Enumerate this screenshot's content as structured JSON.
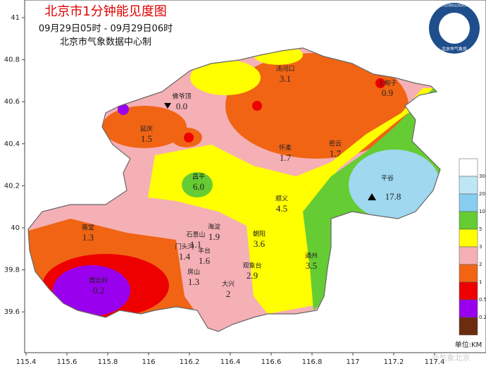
{
  "header": {
    "title": "北京市1分钟能见度图",
    "time_range": "09月29日05时 - 09月29日06时",
    "producer": "北京市气象数据中心制"
  },
  "axes": {
    "xticks": [
      115.4,
      115.6,
      115.8,
      116,
      116.2,
      116.4,
      116.6,
      116.8,
      117,
      117.2,
      117.4
    ],
    "yticks": [
      41,
      40.8,
      40.6,
      40.4,
      40.2,
      40,
      39.8,
      39.6
    ]
  },
  "stations": [
    {
      "name": "汤河口",
      "value": 3.1
    },
    {
      "name": "上甸子",
      "value": 0.9
    },
    {
      "name": "佛爷顶",
      "value": 0,
      "label": "0.0"
    },
    {
      "name": "延庆",
      "value": 1.5
    },
    {
      "name": "怀柔",
      "value": 1.7
    },
    {
      "name": "密云",
      "value": 1.7
    },
    {
      "name": "平谷",
      "value": 17.8
    },
    {
      "name": "昌平",
      "value": 6,
      "label": "6.0"
    },
    {
      "name": "顺义",
      "value": 4.5
    },
    {
      "name": "海淀",
      "value": 1.9
    },
    {
      "name": "斋堂",
      "value": 1.3
    },
    {
      "name": "石景山",
      "value": 1.1
    },
    {
      "name": "门头沟",
      "value": 1.4
    },
    {
      "name": "丰台",
      "value": 1.6
    },
    {
      "name": "朝阳",
      "value": 3.6
    },
    {
      "name": "观象台",
      "value": 2.9
    },
    {
      "name": "通州",
      "value": 3.5
    },
    {
      "name": "房山",
      "value": 1.3
    },
    {
      "name": "大兴",
      "value": 2.0
    },
    {
      "name": "霞云岭",
      "value": 0.2
    }
  ],
  "legend": {
    "colors": [
      "#ffffff",
      "#bfe6f5",
      "#87cdf0",
      "#66cc33",
      "#ffff00",
      "#f5b0b5",
      "#f06414",
      "#ee0000",
      "#9900ee",
      "#6b2c10"
    ],
    "labels": [
      30,
      20,
      10,
      5,
      3,
      2,
      1,
      0.5,
      0.2
    ],
    "unit": "单位:KM"
  },
  "logo": {
    "text_en": "BEIJING METEOROLOGICAL SERVICE",
    "text_cn": "北京市气象局"
  },
  "watermark": "@气象北京"
}
